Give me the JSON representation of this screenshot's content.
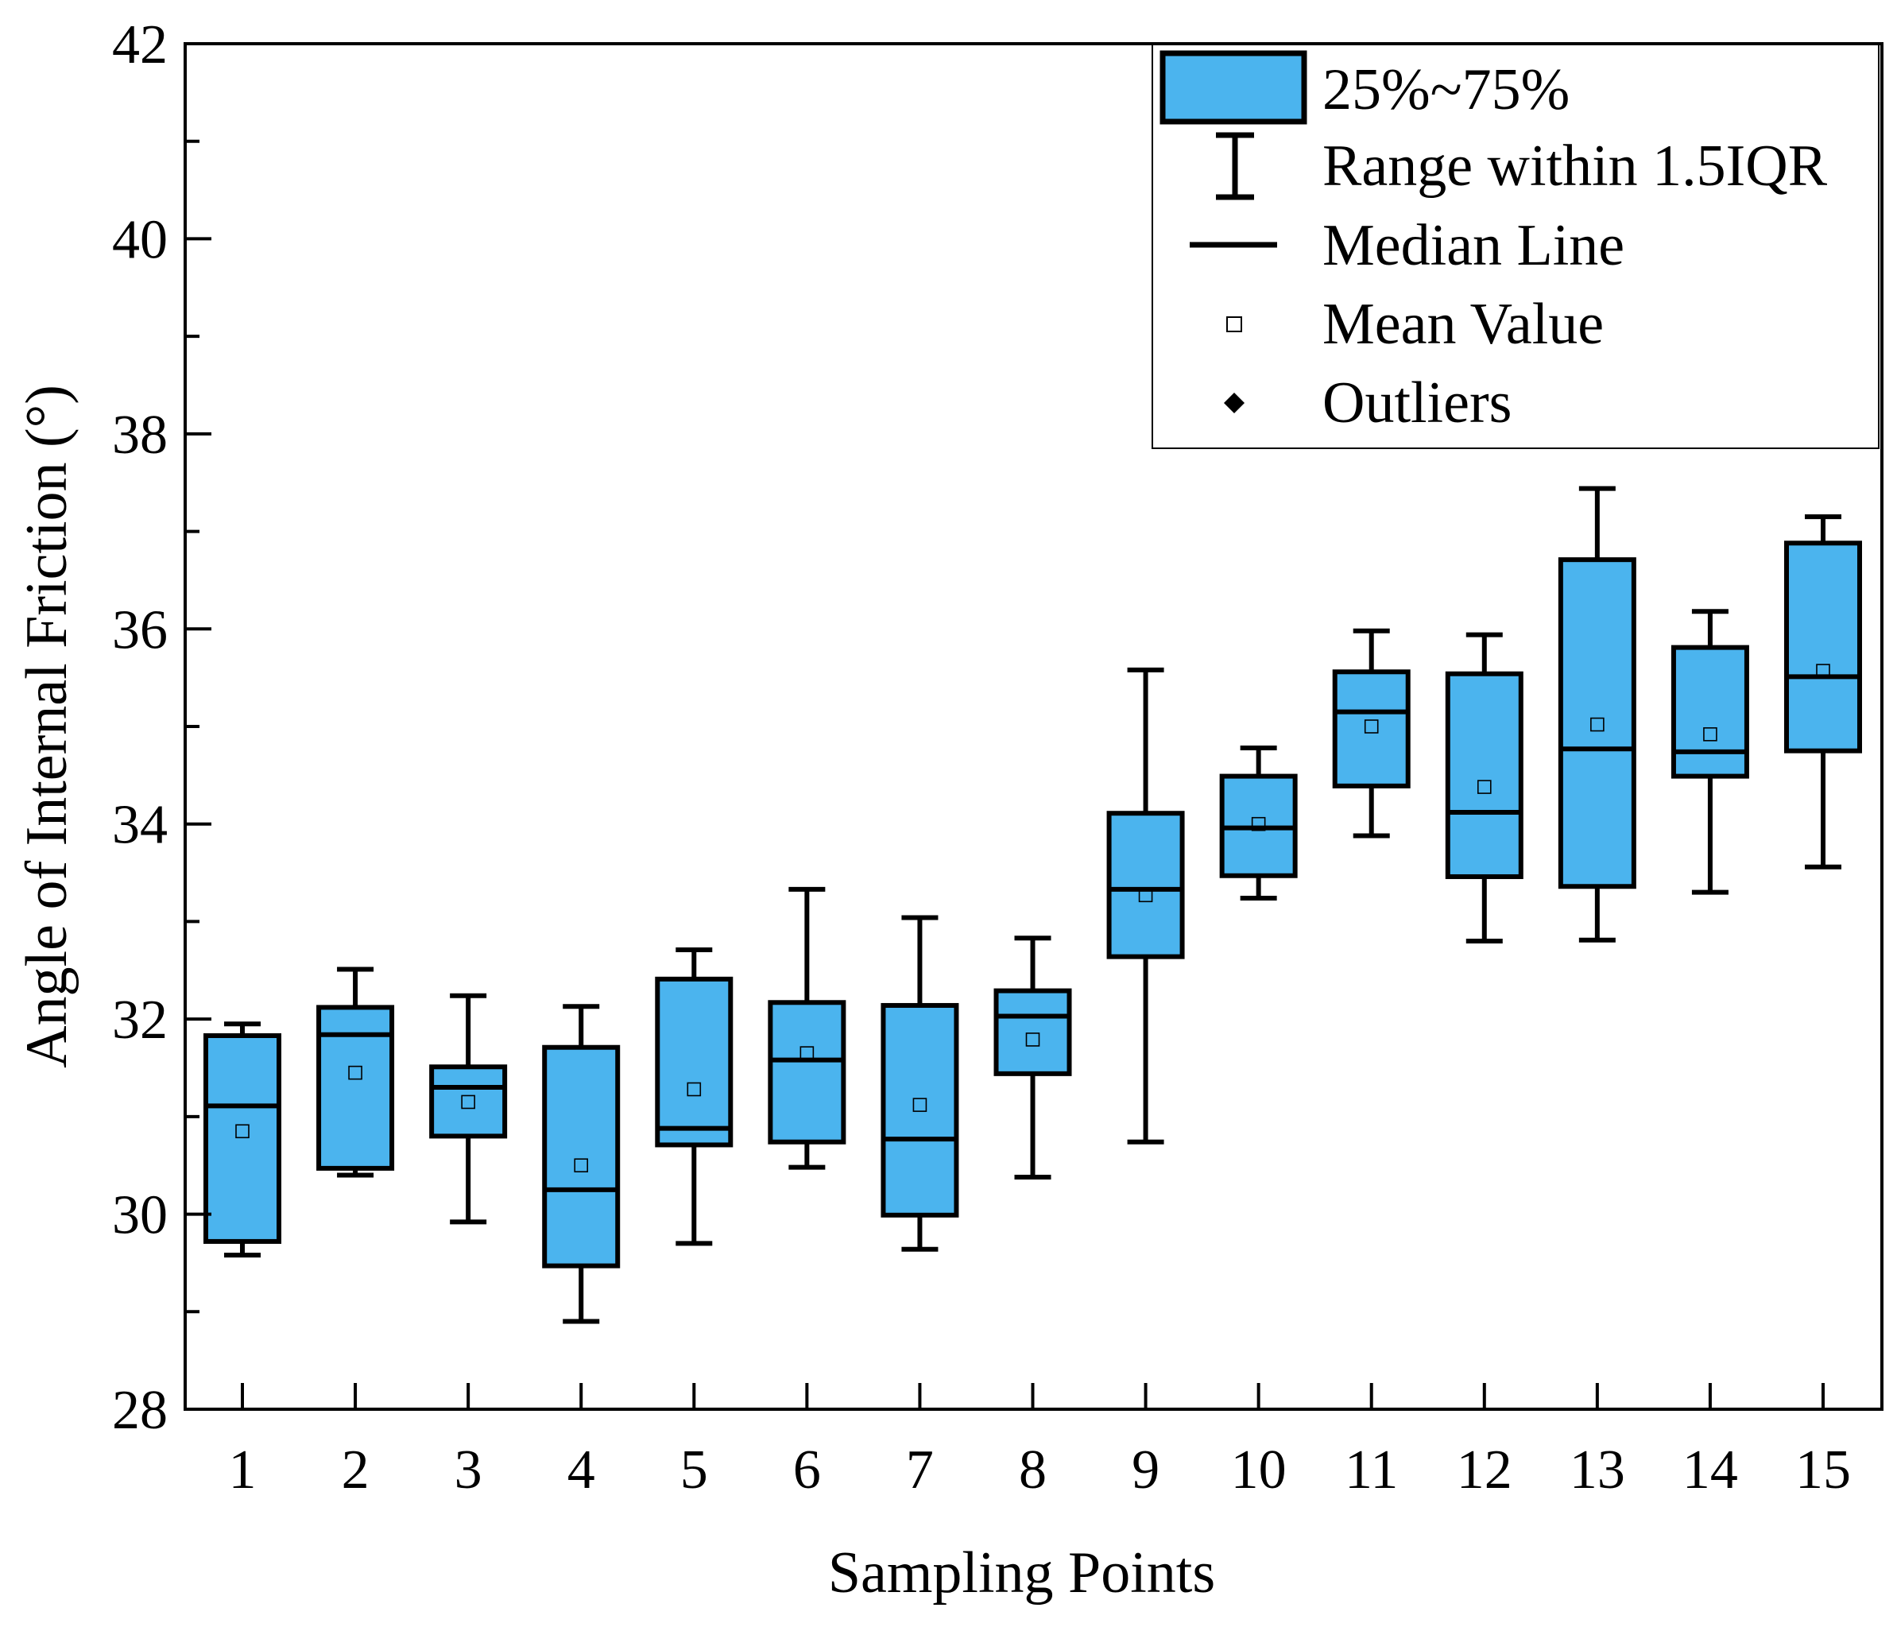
{
  "chart_data": {
    "type": "box",
    "xlabel": "Sampling Points",
    "ylabel": "Angle of Internal Friction (°)",
    "ylim": [
      28,
      42
    ],
    "yticks": [
      "28",
      "30",
      "32",
      "34",
      "36",
      "38",
      "40",
      "42"
    ],
    "categories": [
      "1",
      "2",
      "3",
      "4",
      "5",
      "6",
      "7",
      "8",
      "9",
      "10",
      "11",
      "12",
      "13",
      "14",
      "15"
    ],
    "boxes": [
      {
        "min": 29.58,
        "q1": 29.72,
        "median": 31.11,
        "q3": 31.83,
        "max": 31.95,
        "mean": 30.85
      },
      {
        "min": 30.4,
        "q1": 30.47,
        "median": 31.84,
        "q3": 32.12,
        "max": 32.51,
        "mean": 31.45
      },
      {
        "min": 29.92,
        "q1": 30.8,
        "median": 31.3,
        "q3": 31.51,
        "max": 32.24,
        "mean": 31.15
      },
      {
        "min": 28.9,
        "q1": 29.47,
        "median": 30.25,
        "q3": 31.71,
        "max": 32.13,
        "mean": 30.5
      },
      {
        "min": 29.7,
        "q1": 30.71,
        "median": 30.88,
        "q3": 32.41,
        "max": 32.71,
        "mean": 31.28
      },
      {
        "min": 30.48,
        "q1": 30.74,
        "median": 31.58,
        "q3": 32.17,
        "max": 33.33,
        "mean": 31.65
      },
      {
        "min": 29.64,
        "q1": 29.99,
        "median": 30.77,
        "q3": 32.14,
        "max": 33.04,
        "mean": 31.12
      },
      {
        "min": 30.38,
        "q1": 31.44,
        "median": 32.03,
        "q3": 32.29,
        "max": 32.83,
        "mean": 31.79
      },
      {
        "min": 30.74,
        "q1": 32.64,
        "median": 33.33,
        "q3": 34.11,
        "max": 35.58,
        "mean": 33.27
      },
      {
        "min": 33.24,
        "q1": 33.47,
        "median": 33.96,
        "q3": 34.49,
        "max": 34.78,
        "mean": 34.0
      },
      {
        "min": 33.88,
        "q1": 34.39,
        "median": 35.15,
        "q3": 35.56,
        "max": 35.98,
        "mean": 35.0
      },
      {
        "min": 32.8,
        "q1": 33.46,
        "median": 34.12,
        "q3": 35.54,
        "max": 35.94,
        "mean": 34.38
      },
      {
        "min": 32.81,
        "q1": 33.36,
        "median": 34.77,
        "q3": 36.71,
        "max": 37.44,
        "mean": 35.02
      },
      {
        "min": 33.3,
        "q1": 34.49,
        "median": 34.74,
        "q3": 35.81,
        "max": 36.18,
        "mean": 34.92
      },
      {
        "min": 33.56,
        "q1": 34.75,
        "median": 35.51,
        "q3": 36.88,
        "max": 37.15,
        "mean": 35.57
      }
    ],
    "legend": {
      "position": "top-right",
      "items": [
        "25%~75%",
        "Range within 1.5IQR",
        "Median Line",
        "Mean Value",
        "Outliers"
      ]
    },
    "colors": {
      "box_fill": "#4BB4EE",
      "stroke": "#000000",
      "mean_marker": "#ffffff"
    }
  }
}
